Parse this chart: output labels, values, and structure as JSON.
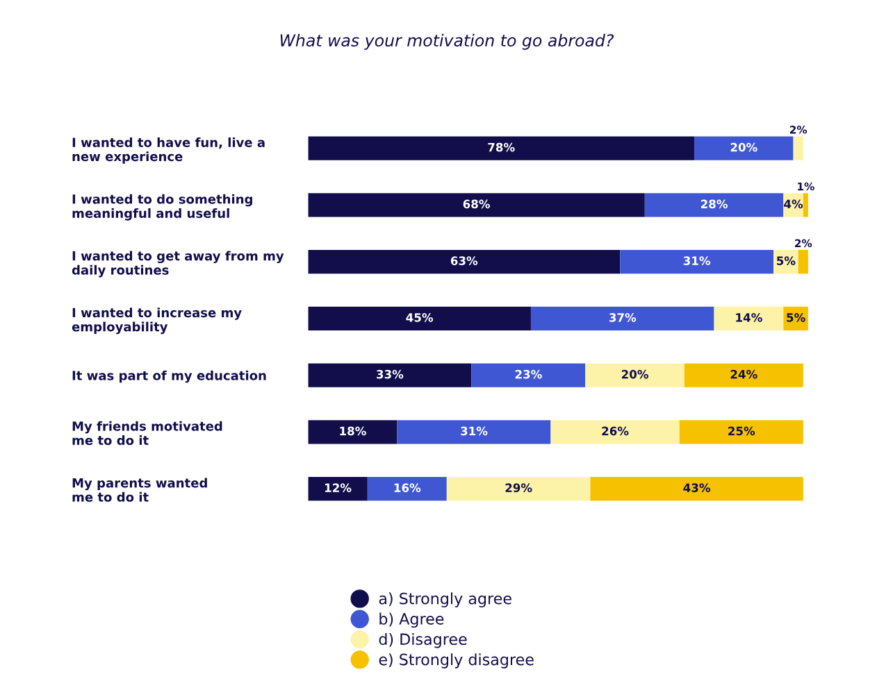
{
  "chart_data": {
    "type": "bar",
    "orientation": "horizontal",
    "stacked": true,
    "title": "What was your motivation to go abroad?",
    "categories": [
      "I wanted to have fun, live a\nnew experience",
      "I wanted to do something\nmeaningful and useful",
      "I wanted to get away from my\ndaily routines",
      "I wanted to increase my\nemployability",
      "It was part of my education",
      "My friends motivated\nme to do it",
      "My parents wanted\nme to do it"
    ],
    "series": [
      {
        "name": "a) Strongly agree",
        "color": "#110e4b",
        "values": [
          78,
          68,
          63,
          45,
          33,
          18,
          12
        ],
        "value_labels": [
          "78%",
          "68%",
          "63%",
          "45%",
          "33%",
          "18%",
          "12%"
        ]
      },
      {
        "name": "b) Agree",
        "color": "#4057d4",
        "values": [
          20,
          28,
          31,
          37,
          23,
          31,
          16
        ],
        "value_labels": [
          "20%",
          "28%",
          "31%",
          "37%",
          "23%",
          "31%",
          "16%"
        ]
      },
      {
        "name": "d) Disagree",
        "color": "#fdf3a8",
        "values": [
          2,
          4,
          5,
          14,
          20,
          26,
          29
        ],
        "value_labels": [
          "2%",
          "4%",
          "5%",
          "14%",
          "20%",
          "26%",
          "29%"
        ]
      },
      {
        "name": "e) Strongly disagree",
        "color": "#f6c200",
        "values": [
          null,
          1,
          2,
          5,
          24,
          25,
          43
        ],
        "value_labels": [
          null,
          "1%",
          "2%",
          "5%",
          "24%",
          "25%",
          "43%"
        ]
      }
    ],
    "legend": "bottom",
    "marker": "circle",
    "tick_labels": "y"
  }
}
